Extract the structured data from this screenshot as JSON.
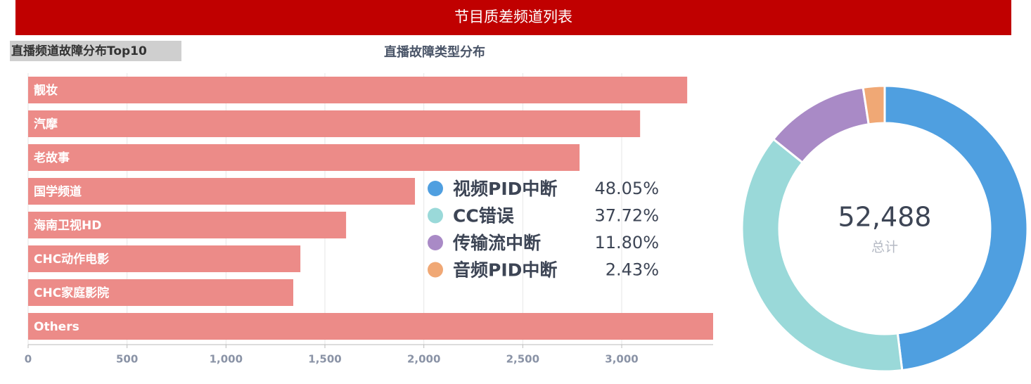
{
  "header": {
    "title": "节目质差频道列表"
  },
  "chart_data": [
    {
      "type": "bar",
      "orientation": "horizontal",
      "title": "直播频道故障分布Top10",
      "categories": [
        "靓妆",
        "汽摩",
        "老故事",
        "国学频道",
        "海南卫视HD",
        "CHC动作电影",
        "CHC家庭影院",
        "Others"
      ],
      "values": [
        3331,
        3093,
        2787,
        1955,
        1607,
        1376,
        1340,
        3462
      ],
      "color": "#ec8b88",
      "xlim": [
        0,
        3462
      ],
      "xticks": [
        0,
        500,
        {
          "value": 1000,
          "label": "1,000"
        },
        {
          "value": 1500,
          "label": "1,500"
        },
        {
          "value": 2000,
          "label": "2,000"
        },
        {
          "value": 2500,
          "label": "2,500"
        },
        {
          "value": 3000,
          "label": "3,000"
        }
      ],
      "grid": true
    },
    {
      "type": "donut",
      "title": "直播故障类型分布",
      "categories": [
        "视频PID中断",
        "CC错误",
        "传输流中断",
        "音频PID中断"
      ],
      "values": [
        48.05,
        37.72,
        11.8,
        2.43
      ],
      "value_labels": [
        "48.05%",
        "37.72%",
        "11.80%",
        "2.43%"
      ],
      "colors": [
        "#4f9fe0",
        "#9ad9d9",
        "#a98ac6",
        "#f0a875"
      ],
      "total": {
        "value": 52488,
        "label": "52,488"
      },
      "total_caption": "总计"
    }
  ]
}
